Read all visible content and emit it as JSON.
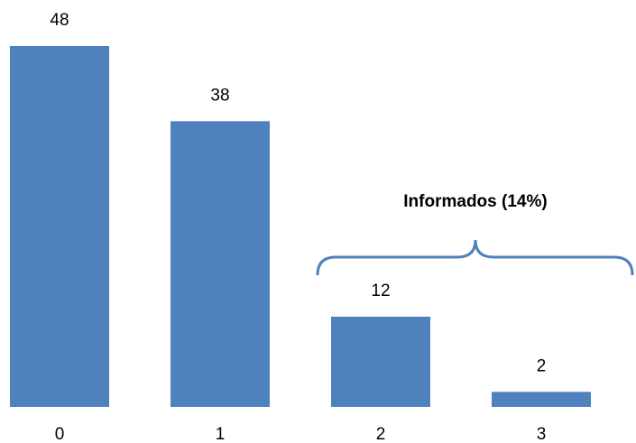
{
  "chart_data": {
    "type": "bar",
    "categories": [
      "0",
      "1",
      "2",
      "3"
    ],
    "values": [
      48,
      38,
      12,
      2
    ],
    "color": "#4f81bd",
    "ylim": [
      0,
      48
    ],
    "annotation": "Informados (14%)"
  }
}
